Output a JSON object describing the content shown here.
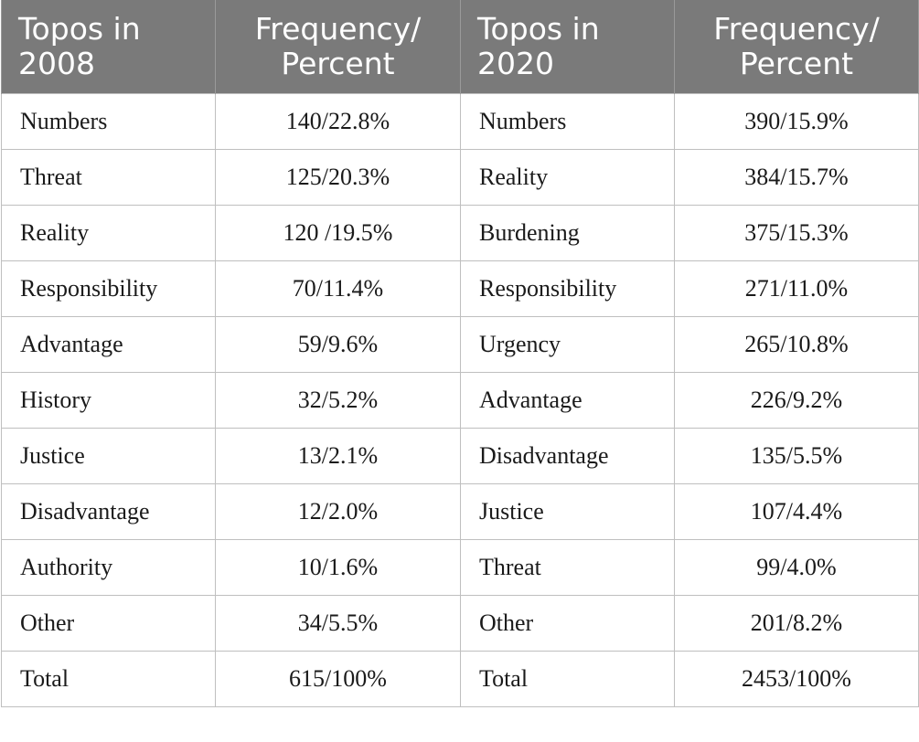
{
  "headers": {
    "col1": "Topos in\n2008",
    "col1_line1": "Topos in",
    "col1_line2": "2008",
    "col2_line1": "Frequency/",
    "col2_line2": "Percent",
    "col3_line1": "Topos in",
    "col3_line2": "2020",
    "col4_line1": "Frequency/",
    "col4_line2": "Percent"
  },
  "rows": [
    {
      "topos_2008": "Numbers",
      "freq_2008": "140/22.8%",
      "topos_2020": "Numbers",
      "freq_2020": "390/15.9%"
    },
    {
      "topos_2008": "Threat",
      "freq_2008": "125/20.3%",
      "topos_2020": "Reality",
      "freq_2020": "384/15.7%"
    },
    {
      "topos_2008": "Reality",
      "freq_2008": "120 /19.5%",
      "topos_2020": "Burdening",
      "freq_2020": "375/15.3%"
    },
    {
      "topos_2008": "Responsibility",
      "freq_2008": "70/11.4%",
      "topos_2020": "Responsibility",
      "freq_2020": "271/11.0%"
    },
    {
      "topos_2008": "Advantage",
      "freq_2008": "59/9.6%",
      "topos_2020": "Urgency",
      "freq_2020": "265/10.8%"
    },
    {
      "topos_2008": "History",
      "freq_2008": "32/5.2%",
      "topos_2020": "Advantage",
      "freq_2020": "226/9.2%"
    },
    {
      "topos_2008": "Justice",
      "freq_2008": "13/2.1%",
      "topos_2020": "Disadvantage",
      "freq_2020": "135/5.5%"
    },
    {
      "topos_2008": "Disadvantage",
      "freq_2008": "12/2.0%",
      "topos_2020": "Justice",
      "freq_2020": "107/4.4%"
    },
    {
      "topos_2008": "Authority",
      "freq_2008": "10/1.6%",
      "topos_2020": "Threat",
      "freq_2020": "99/4.0%"
    },
    {
      "topos_2008": "Other",
      "freq_2008": "34/5.5%",
      "topos_2020": "Other",
      "freq_2020": "201/8.2%"
    },
    {
      "topos_2008": "Total",
      "freq_2008": "615/100%",
      "topos_2020": "Total",
      "freq_2020": "2453/100%"
    }
  ],
  "colors": {
    "header_bg": "#7a7a7a",
    "header_text": "#ffffff",
    "grid": "#bfbfbf"
  }
}
